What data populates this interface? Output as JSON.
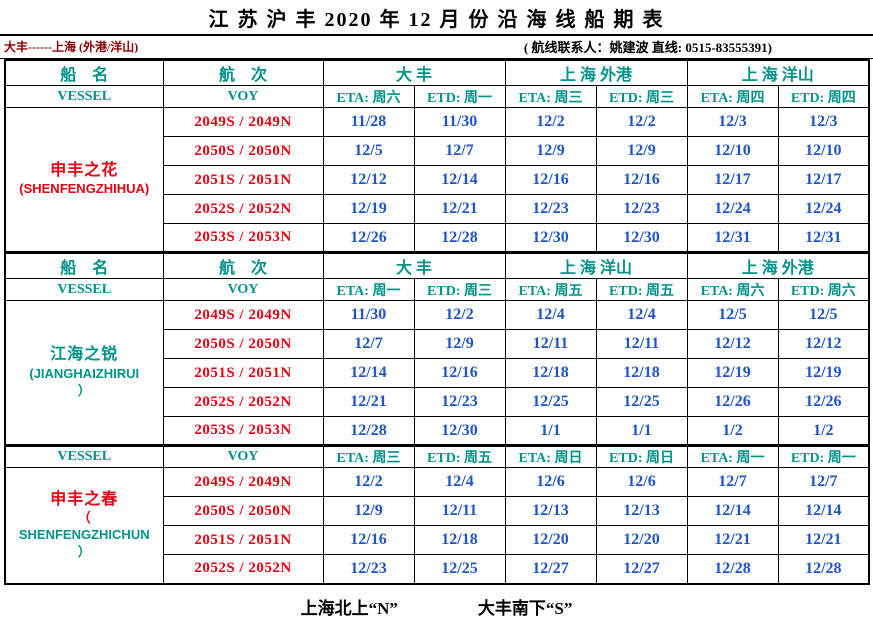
{
  "title": "江 苏 沪 丰 2020 年 12 月 份 沿 海 线 船 期 表",
  "route": "大丰------上海 (外港/洋山)",
  "contact": "( 航线联系人：姚建波 直线: 0515-83555391)",
  "footer": {
    "north": "上海北上“N”",
    "south": "大丰南下“S”"
  },
  "colors": {
    "red": "#e60012",
    "blue": "#1f55c4",
    "teal": "#00938a",
    "maroon": "#8b0000",
    "ink": "#000000"
  },
  "sections": [
    {
      "header_cn": {
        "vessel": "船　名",
        "voy": "航　次",
        "ports": [
          "大  丰",
          "上 海  外港",
          "上 海  洋山"
        ]
      },
      "header_en": {
        "vessel": "VESSEL",
        "voy": "VOY"
      },
      "days": [
        "ETA: 周六",
        "ETD: 周一",
        "ETA: 周三",
        "ETD: 周三",
        "ETA: 周四",
        "ETD: 周四"
      ],
      "vessel": {
        "lines": [
          "申丰之花",
          "(SHENFENGZHIHUA)"
        ]
      },
      "rows": [
        {
          "voy": "2049S / 2049N",
          "dates": [
            "11/28",
            "11/30",
            "12/2",
            "12/2",
            "12/3",
            "12/3"
          ]
        },
        {
          "voy": "2050S / 2050N",
          "dates": [
            "12/5",
            "12/7",
            "12/9",
            "12/9",
            "12/10",
            "12/10"
          ]
        },
        {
          "voy": "2051S / 2051N",
          "dates": [
            "12/12",
            "12/14",
            "12/16",
            "12/16",
            "12/17",
            "12/17"
          ]
        },
        {
          "voy": "2052S / 2052N",
          "dates": [
            "12/19",
            "12/21",
            "12/23",
            "12/23",
            "12/24",
            "12/24"
          ]
        },
        {
          "voy": "2053S / 2053N",
          "dates": [
            "12/26",
            "12/28",
            "12/30",
            "12/30",
            "12/31",
            "12/31"
          ]
        }
      ]
    },
    {
      "header_cn": {
        "vessel": "船　名",
        "voy": "航　次",
        "ports": [
          "大  丰",
          "上 海  洋山",
          "上 海  外港"
        ]
      },
      "header_en": {
        "vessel": "VESSEL",
        "voy": "VOY"
      },
      "days": [
        "ETA: 周一",
        "ETD: 周三",
        "ETA: 周五",
        "ETD: 周五",
        "ETA: 周六",
        "ETD: 周六"
      ],
      "vessel": {
        "lines": [
          "江海之锐",
          "(JIANGHAIZHIRUI",
          "）"
        ]
      },
      "rows": [
        {
          "voy": "2049S / 2049N",
          "dates": [
            "11/30",
            "12/2",
            "12/4",
            "12/4",
            "12/5",
            "12/5"
          ]
        },
        {
          "voy": "2050S / 2050N",
          "dates": [
            "12/7",
            "12/9",
            "12/11",
            "12/11",
            "12/12",
            "12/12"
          ]
        },
        {
          "voy": "2051S / 2051N",
          "dates": [
            "12/14",
            "12/16",
            "12/18",
            "12/18",
            "12/19",
            "12/19"
          ]
        },
        {
          "voy": "2052S / 2052N",
          "dates": [
            "12/21",
            "12/23",
            "12/25",
            "12/25",
            "12/26",
            "12/26"
          ]
        },
        {
          "voy": "2053S / 2053N",
          "dates": [
            "12/28",
            "12/30",
            "1/1",
            "1/1",
            "1/2",
            "1/2"
          ]
        }
      ]
    },
    {
      "header_en": {
        "vessel": "VESSEL",
        "voy": "VOY"
      },
      "days": [
        "ETA: 周三",
        "ETD: 周五",
        "ETA: 周日",
        "ETD: 周日",
        "ETA: 周一",
        "ETD: 周一"
      ],
      "vessel": {
        "lines": [
          "申丰之春",
          "（",
          "SHENFENGZHICHUN",
          "）"
        ]
      },
      "rows": [
        {
          "voy": "2049S / 2049N",
          "dates": [
            "12/2",
            "12/4",
            "12/6",
            "12/6",
            "12/7",
            "12/7"
          ]
        },
        {
          "voy": "2050S / 2050N",
          "dates": [
            "12/9",
            "12/11",
            "12/13",
            "12/13",
            "12/14",
            "12/14"
          ]
        },
        {
          "voy": "2051S / 2051N",
          "dates": [
            "12/16",
            "12/18",
            "12/20",
            "12/20",
            "12/21",
            "12/21"
          ]
        },
        {
          "voy": "2052S / 2052N",
          "dates": [
            "12/23",
            "12/25",
            "12/27",
            "12/27",
            "12/28",
            "12/28"
          ]
        }
      ]
    }
  ]
}
